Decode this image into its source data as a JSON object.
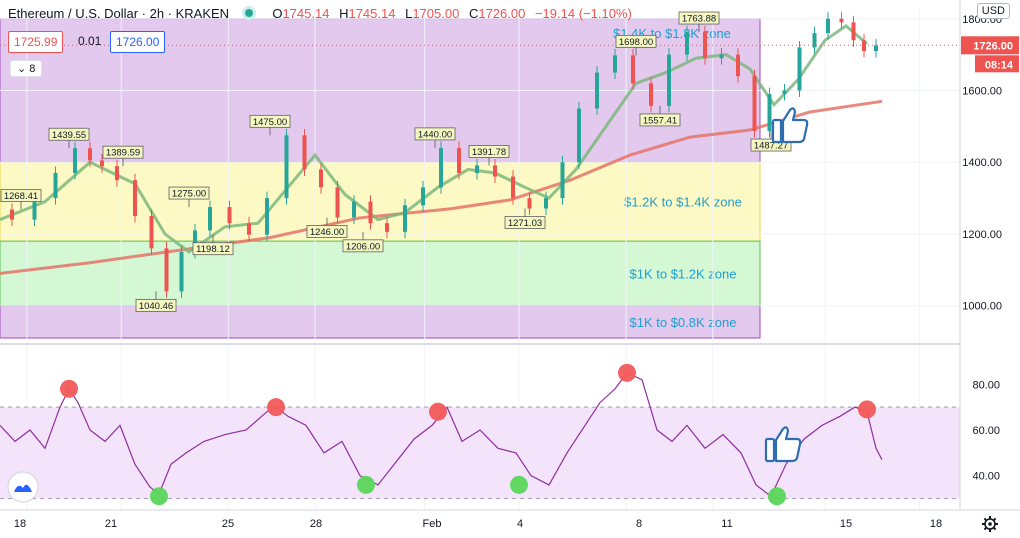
{
  "header": {
    "symbol": "Ethereum / U.S. Dollar · 2h · KRAKEN",
    "open_label": "O",
    "open": "1745.14",
    "high_label": "H",
    "high": "1745.14",
    "low_label": "L",
    "low": "1705.00",
    "close_label": "C",
    "close": "1726.00",
    "change": "−19.14 (−1.10%)",
    "bid": "1725.99",
    "spread": "0.01",
    "ask": "1726.00",
    "indicator_count": "8",
    "currency": "USD"
  },
  "price_tag": {
    "value": "1726.00",
    "countdown": "08:14"
  },
  "colors": {
    "up": "#26a69a",
    "down": "#ef5350",
    "ma_fast": "#7cb77c",
    "ma_slow": "#e57368",
    "rsi": "#8e2f9e"
  },
  "chart_data": {
    "type": "line",
    "price_axis": {
      "ticks": [
        1000,
        1200,
        1400,
        1600,
        1800
      ],
      "tick_labels": [
        "1000.00",
        "1200.00",
        "1400.00",
        "1600.00",
        "1800.00"
      ],
      "range": [
        910,
        1830
      ]
    },
    "rsi_axis": {
      "ticks": [
        40,
        60,
        80
      ],
      "tick_labels": [
        "40.00",
        "60.00",
        "80.00"
      ],
      "range": [
        25,
        95
      ],
      "bands": [
        30,
        70
      ]
    },
    "x_axis": {
      "labels": [
        "18",
        "21",
        "25",
        "28",
        "Feb",
        "4",
        "8",
        "11",
        "15",
        "18"
      ],
      "range": [
        0,
        32
      ]
    },
    "zones": [
      {
        "label": "$1.4K to $1.8K zone",
        "low": 1400,
        "high": 1800,
        "fill": "#e3c9ee"
      },
      {
        "label": "$1.2K to $1.4K zone",
        "low": 1180,
        "high": 1400,
        "fill": "#fdf9c4"
      },
      {
        "label": "$1K to $1.2K zone",
        "low": 1000,
        "high": 1180,
        "fill": "#d4f7d4"
      },
      {
        "label": "$1K to $0.8K zone",
        "low": 910,
        "high": 1000,
        "fill": "#e3c9ee"
      }
    ],
    "price": {
      "x": [
        0,
        0.8,
        1.5,
        2.2,
        2.8,
        3.2,
        3.6,
        4.2,
        4.8,
        5.3,
        5.8,
        6.3,
        6.7,
        7.3,
        8.0,
        8.6,
        9.2,
        9.9,
        10.4,
        11.0,
        11.5,
        12.1,
        12.6,
        13.2,
        13.8,
        14.4,
        15.0,
        15.6,
        16.2,
        16.8,
        17.4,
        17.9,
        18.5,
        19.0,
        19.6,
        20.2,
        20.8,
        21.4,
        22.0,
        22.6,
        23.2,
        23.8,
        24.3,
        24.9,
        25.4,
        25.9,
        26.4,
        26.9,
        27.4,
        27.8,
        28.3,
        28.6,
        29.0,
        29.4
      ],
      "y": [
        1268,
        1240,
        1300,
        1370,
        1439,
        1405,
        1389,
        1350,
        1250,
        1160,
        1040,
        1150,
        1210,
        1275,
        1230,
        1198,
        1300,
        1475,
        1380,
        1330,
        1246,
        1290,
        1230,
        1206,
        1280,
        1330,
        1440,
        1370,
        1391,
        1360,
        1300,
        1271,
        1300,
        1400,
        1550,
        1650,
        1698,
        1620,
        1557,
        1700,
        1763,
        1690,
        1700,
        1640,
        1487,
        1590,
        1600,
        1720,
        1760,
        1800,
        1790,
        1740,
        1710,
        1726
      ]
    },
    "ma_fast": {
      "x": [
        0,
        1.5,
        3,
        4.5,
        5.5,
        6.3,
        7.5,
        8.6,
        9.6,
        10.5,
        11.5,
        12.6,
        13.5,
        14.6,
        15.6,
        16.5,
        17.5,
        18.3,
        19.2,
        20.2,
        21.2,
        22.2,
        23.2,
        24.2,
        25.0,
        25.8,
        26.6,
        27.5,
        28.2,
        28.9
      ],
      "y": [
        1240,
        1290,
        1400,
        1340,
        1200,
        1150,
        1220,
        1230,
        1330,
        1420,
        1310,
        1240,
        1260,
        1330,
        1380,
        1370,
        1330,
        1300,
        1380,
        1500,
        1620,
        1650,
        1690,
        1700,
        1660,
        1560,
        1630,
        1740,
        1780,
        1730
      ]
    },
    "ma_slow": {
      "x": [
        0,
        3,
        6,
        9,
        12,
        15,
        17,
        19,
        21,
        23,
        25,
        27,
        29.4
      ],
      "y": [
        1090,
        1120,
        1155,
        1190,
        1245,
        1270,
        1295,
        1350,
        1420,
        1470,
        1490,
        1540,
        1570
      ]
    },
    "swing_labels": [
      {
        "x": 0.7,
        "y": 1268,
        "text": "1268.41",
        "pos": "above"
      },
      {
        "x": 2.3,
        "y": 1439,
        "text": "1439.55",
        "pos": "above"
      },
      {
        "x": 4.1,
        "y": 1389,
        "text": "1389.59",
        "pos": "above"
      },
      {
        "x": 5.2,
        "y": 1040,
        "text": "1040.46",
        "pos": "below"
      },
      {
        "x": 6.3,
        "y": 1275,
        "text": "1275.00",
        "pos": "above"
      },
      {
        "x": 7.1,
        "y": 1198,
        "text": "1198.12",
        "pos": "below"
      },
      {
        "x": 9.0,
        "y": 1475,
        "text": "1475.00",
        "pos": "above"
      },
      {
        "x": 10.9,
        "y": 1246,
        "text": "1246.00",
        "pos": "below"
      },
      {
        "x": 12.1,
        "y": 1206,
        "text": "1206.00",
        "pos": "below"
      },
      {
        "x": 14.5,
        "y": 1440,
        "text": "1440.00",
        "pos": "above"
      },
      {
        "x": 16.3,
        "y": 1391,
        "text": "1391.78",
        "pos": "above"
      },
      {
        "x": 17.5,
        "y": 1271,
        "text": "1271.03",
        "pos": "below"
      },
      {
        "x": 21.2,
        "y": 1698,
        "text": "1698.00",
        "pos": "above"
      },
      {
        "x": 22.0,
        "y": 1557,
        "text": "1557.41",
        "pos": "below"
      },
      {
        "x": 23.3,
        "y": 1763,
        "text": "1763.88",
        "pos": "above"
      },
      {
        "x": 25.7,
        "y": 1487,
        "text": "1487.27",
        "pos": "below"
      }
    ],
    "rsi": {
      "x": [
        0,
        0.5,
        1,
        1.5,
        2,
        2.3,
        2.6,
        3,
        3.5,
        4,
        4.5,
        5,
        5.3,
        5.7,
        6.2,
        6.8,
        7.5,
        8.2,
        8.9,
        9.2,
        9.6,
        10.2,
        10.8,
        11.4,
        12.0,
        12.6,
        13.2,
        13.8,
        14.4,
        14.9,
        15.4,
        16.0,
        16.6,
        17.2,
        17.7,
        18.3,
        18.9,
        19.5,
        20.0,
        20.5,
        20.9,
        21.4,
        21.9,
        22.4,
        22.9,
        23.5,
        24.1,
        24.7,
        25.2,
        25.7,
        26.2,
        26.8,
        27.4,
        28.0,
        28.5,
        28.9,
        29.2,
        29.4
      ],
      "y": [
        62,
        55,
        60,
        52,
        70,
        78,
        72,
        60,
        55,
        62,
        45,
        35,
        32,
        45,
        50,
        55,
        58,
        60,
        68,
        70,
        66,
        62,
        50,
        55,
        40,
        36,
        46,
        56,
        62,
        70,
        55,
        60,
        52,
        50,
        40,
        36,
        50,
        62,
        72,
        78,
        85,
        82,
        60,
        55,
        62,
        52,
        58,
        50,
        36,
        31,
        45,
        56,
        62,
        66,
        70,
        68,
        52,
        47
      ]
    },
    "rsi_markers": [
      {
        "x": 2.3,
        "y": 78,
        "kind": "overbought"
      },
      {
        "x": 5.3,
        "y": 31,
        "kind": "oversold"
      },
      {
        "x": 9.2,
        "y": 70,
        "kind": "overbought"
      },
      {
        "x": 12.2,
        "y": 36,
        "kind": "oversold"
      },
      {
        "x": 14.6,
        "y": 68,
        "kind": "overbought"
      },
      {
        "x": 17.3,
        "y": 36,
        "kind": "oversold"
      },
      {
        "x": 20.9,
        "y": 85,
        "kind": "overbought"
      },
      {
        "x": 25.9,
        "y": 31,
        "kind": "oversold"
      },
      {
        "x": 28.9,
        "y": 69,
        "kind": "overbought"
      }
    ]
  }
}
